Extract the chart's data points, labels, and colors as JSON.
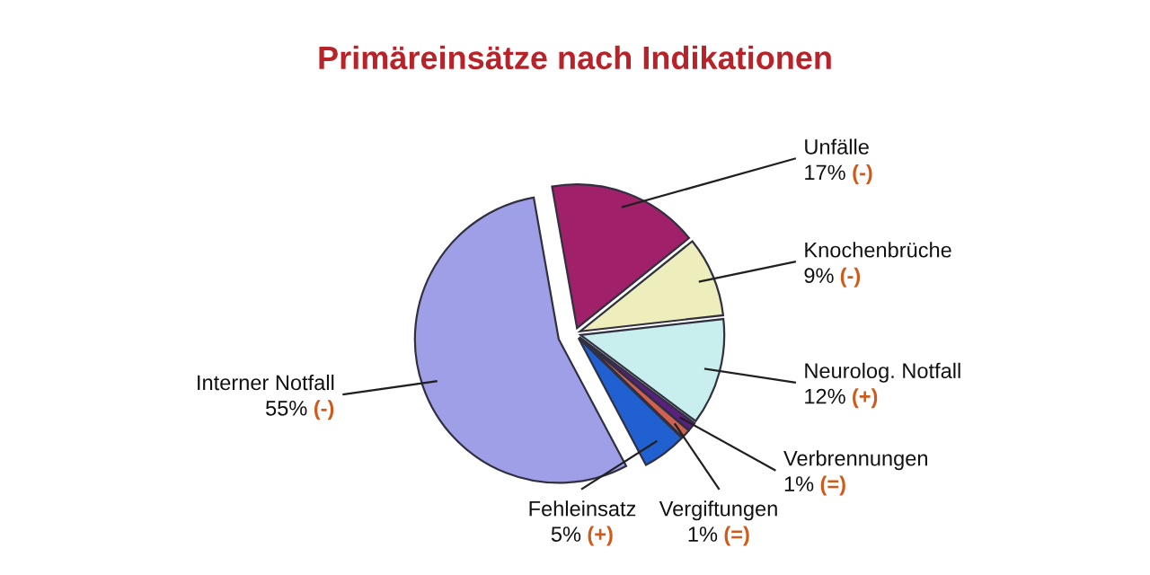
{
  "chart_data": {
    "type": "pie",
    "title": "Primäreinsätze nach Indikationen",
    "categories": [
      "Unfälle",
      "Knochenbrüche",
      "Neurolog. Notfall",
      "Verbrennungen",
      "Vergiftungen",
      "Fehleinsatz",
      "Interner Notfall"
    ],
    "values": [
      17,
      9,
      12,
      1,
      1,
      5,
      55
    ],
    "colors": [
      "#a0206a",
      "#eeeebc",
      "#c8eeee",
      "#5a2080",
      "#d06050",
      "#2060d0",
      "#9f9fe8"
    ],
    "value_labels": [
      "17% (-)",
      "9% (-)",
      "12% (+)",
      "1% (=)",
      "1% (=)",
      "5% (+)",
      "55% (-)"
    ],
    "legend": false
  }
}
